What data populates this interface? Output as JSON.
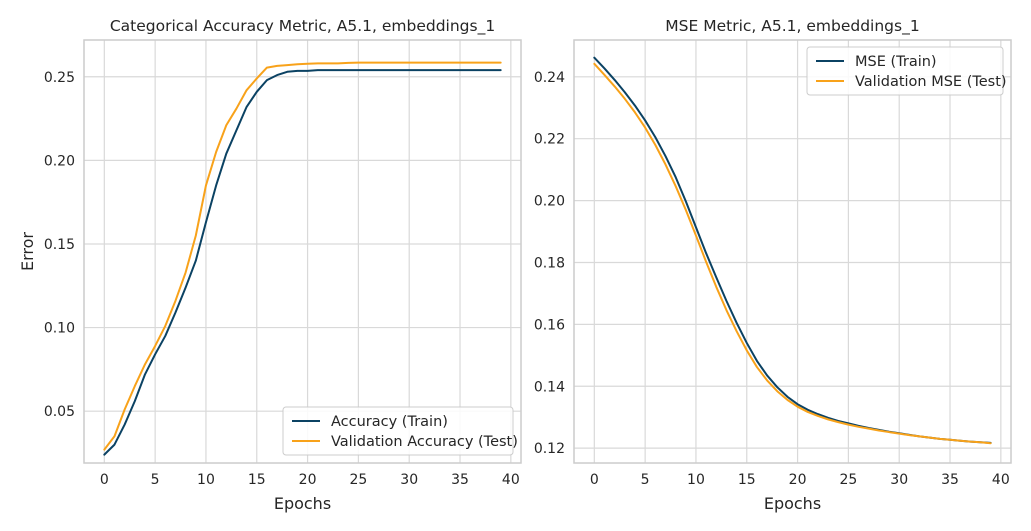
{
  "colors": {
    "train": "#0b4263",
    "test": "#f8a21a",
    "grid": "#d9d9d9",
    "frame": "#cccccc"
  },
  "chart_data": [
    {
      "type": "line",
      "title": "Categorical Accuracy Metric, A5.1, embeddings_1",
      "xlabel": "Epochs",
      "ylabel": "Error",
      "xlim": [
        -2,
        41
      ],
      "ylim": [
        0.019,
        0.272
      ],
      "xticks": [
        0,
        5,
        10,
        15,
        20,
        25,
        30,
        35,
        40
      ],
      "yticks": [
        0.05,
        0.1,
        0.15,
        0.2,
        0.25
      ],
      "ytick_labels": [
        "0.05",
        "0.10",
        "0.15",
        "0.20",
        "0.25"
      ],
      "grid": true,
      "legend": "lower-right",
      "series": [
        {
          "name": "Accuracy (Train)",
          "color": "#0b4263",
          "x": [
            0,
            1,
            2,
            3,
            4,
            5,
            6,
            7,
            8,
            9,
            10,
            11,
            12,
            13,
            14,
            15,
            16,
            17,
            18,
            19,
            20,
            21,
            22,
            23,
            24,
            25,
            26,
            27,
            28,
            29,
            30,
            31,
            32,
            33,
            34,
            35,
            36,
            37,
            38,
            39
          ],
          "values": [
            0.024,
            0.03,
            0.042,
            0.056,
            0.072,
            0.084,
            0.095,
            0.109,
            0.124,
            0.14,
            0.163,
            0.185,
            0.204,
            0.218,
            0.232,
            0.241,
            0.248,
            0.251,
            0.253,
            0.2535,
            0.2535,
            0.254,
            0.254,
            0.254,
            0.254,
            0.254,
            0.254,
            0.254,
            0.254,
            0.254,
            0.254,
            0.254,
            0.254,
            0.254,
            0.254,
            0.254,
            0.254,
            0.254,
            0.254,
            0.254
          ]
        },
        {
          "name": "Validation Accuracy (Test)",
          "color": "#f8a21a",
          "x": [
            0,
            1,
            2,
            3,
            4,
            5,
            6,
            7,
            8,
            9,
            10,
            11,
            12,
            13,
            14,
            15,
            16,
            17,
            18,
            19,
            20,
            21,
            22,
            23,
            24,
            25,
            26,
            27,
            28,
            29,
            30,
            31,
            32,
            33,
            34,
            35,
            36,
            37,
            38,
            39
          ],
          "values": [
            0.027,
            0.035,
            0.051,
            0.065,
            0.078,
            0.089,
            0.101,
            0.116,
            0.133,
            0.155,
            0.185,
            0.205,
            0.221,
            0.231,
            0.242,
            0.249,
            0.2555,
            0.2565,
            0.257,
            0.2575,
            0.2578,
            0.258,
            0.258,
            0.258,
            0.2583,
            0.2585,
            0.2585,
            0.2585,
            0.2585,
            0.2585,
            0.2585,
            0.2585,
            0.2585,
            0.2585,
            0.2585,
            0.2585,
            0.2585,
            0.2585,
            0.2585,
            0.2585
          ]
        }
      ]
    },
    {
      "type": "line",
      "title": "MSE Metric, A5.1, embeddings_1",
      "xlabel": "Epochs",
      "ylabel": "",
      "xlim": [
        -2,
        41
      ],
      "ylim": [
        0.1152,
        0.2519
      ],
      "xticks": [
        0,
        5,
        10,
        15,
        20,
        25,
        30,
        35,
        40
      ],
      "yticks": [
        0.12,
        0.14,
        0.16,
        0.18,
        0.2,
        0.22,
        0.24
      ],
      "ytick_labels": [
        "0.12",
        "0.14",
        "0.16",
        "0.18",
        "0.20",
        "0.22",
        "0.24"
      ],
      "grid": true,
      "legend": "top-right",
      "series": [
        {
          "name": "MSE (Train)",
          "color": "#0b4263",
          "x": [
            0,
            1,
            2,
            3,
            4,
            5,
            6,
            7,
            8,
            9,
            10,
            11,
            12,
            13,
            14,
            15,
            16,
            17,
            18,
            19,
            20,
            21,
            22,
            23,
            24,
            25,
            26,
            27,
            28,
            29,
            30,
            31,
            32,
            33,
            34,
            35,
            36,
            37,
            38,
            39
          ],
          "values": [
            0.2462,
            0.2427,
            0.239,
            0.235,
            0.2307,
            0.2259,
            0.2205,
            0.2144,
            0.2076,
            0.1998,
            0.1914,
            0.183,
            0.1752,
            0.1676,
            0.1605,
            0.154,
            0.1482,
            0.1435,
            0.1397,
            0.1366,
            0.1342,
            0.1324,
            0.131,
            0.1298,
            0.1288,
            0.128,
            0.1272,
            0.1265,
            0.1259,
            0.1253,
            0.1248,
            0.1243,
            0.1238,
            0.1234,
            0.123,
            0.1227,
            0.1224,
            0.1221,
            0.1219,
            0.1217
          ]
        },
        {
          "name": "Validation MSE (Test)",
          "color": "#f8a21a",
          "x": [
            0,
            1,
            2,
            3,
            4,
            5,
            6,
            7,
            8,
            9,
            10,
            11,
            12,
            13,
            14,
            15,
            16,
            17,
            18,
            19,
            20,
            21,
            22,
            23,
            24,
            25,
            26,
            27,
            28,
            29,
            30,
            31,
            32,
            33,
            34,
            35,
            36,
            37,
            38,
            39
          ],
          "values": [
            0.2442,
            0.2406,
            0.2369,
            0.2329,
            0.2285,
            0.2236,
            0.218,
            0.2117,
            0.2047,
            0.197,
            0.1887,
            0.1802,
            0.1721,
            0.1646,
            0.1578,
            0.1516,
            0.1462,
            0.1419,
            0.1384,
            0.1356,
            0.1334,
            0.1317,
            0.1304,
            0.1293,
            0.1284,
            0.1276,
            0.1269,
            0.1263,
            0.1257,
            0.1252,
            0.1247,
            0.1242,
            0.1238,
            0.1234,
            0.123,
            0.1227,
            0.1224,
            0.1221,
            0.1219,
            0.1216
          ]
        }
      ]
    }
  ]
}
